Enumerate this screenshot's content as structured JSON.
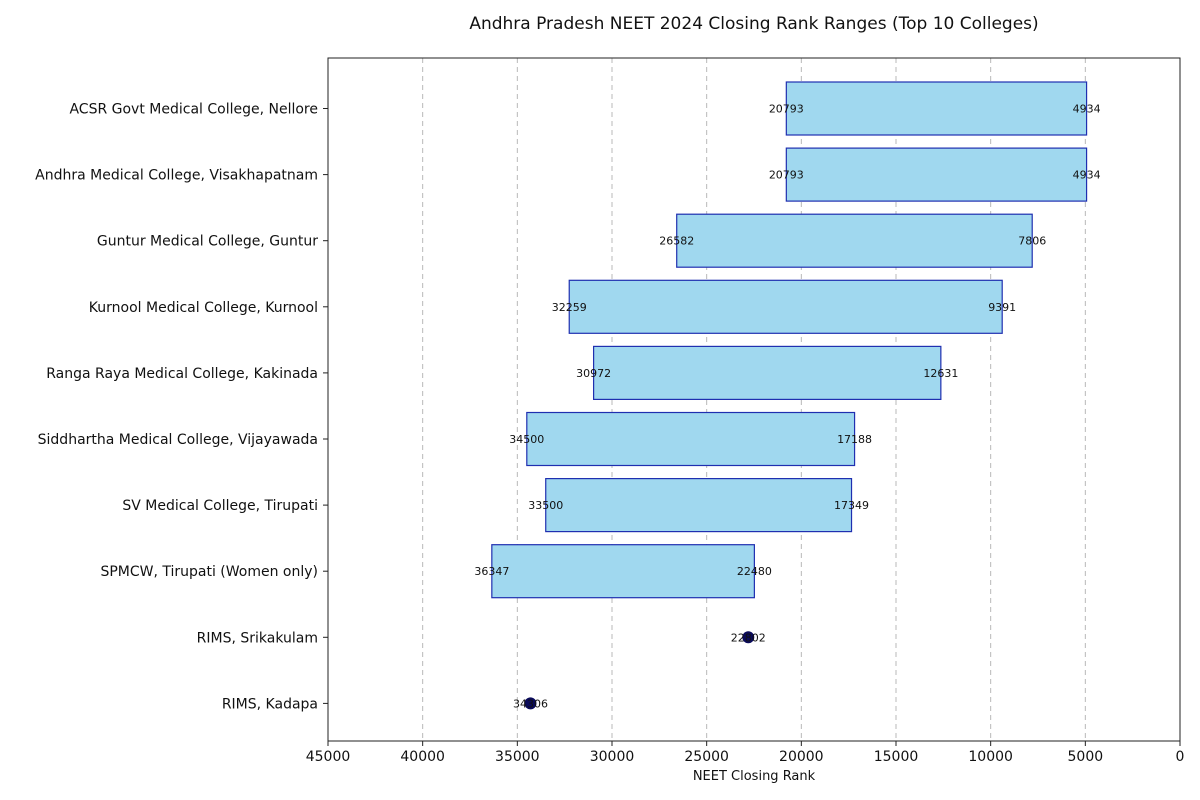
{
  "chart_data": {
    "type": "bar",
    "orientation": "horizontal-range",
    "title": "Andhra Pradesh NEET 2024 Closing Rank Ranges (Top 10 Colleges)",
    "xlabel": "NEET Closing Rank",
    "ylabel": "",
    "xlim": [
      45000,
      0
    ],
    "x_inverted": true,
    "xticks": [
      "45000",
      "40000",
      "35000",
      "30000",
      "25000",
      "20000",
      "15000",
      "10000",
      "5000",
      "0"
    ],
    "xtick_values": [
      45000,
      40000,
      35000,
      30000,
      25000,
      20000,
      15000,
      10000,
      5000,
      0
    ],
    "grid": "vertical dashed",
    "colors": {
      "bar_fill": "#a0d8ef",
      "bar_edge": "#1f2fb0",
      "point": "#0a0a5a"
    },
    "categories": [
      "ACSR Govt Medical College, Nellore",
      "Andhra Medical College, Visakhapatnam",
      "Guntur Medical College, Guntur",
      "Kurnool Medical College, Kurnool",
      "Ranga Raya Medical College, Kakinada",
      "Siddhartha Medical College, Vijayawada",
      "SV Medical College, Tirupati",
      "SPMCW, Tirupati (Women only)",
      "RIMS, Srikakulam",
      "RIMS, Kadapa"
    ],
    "ranges": [
      {
        "low": 4934,
        "high": 20793,
        "low_label": "4934",
        "high_label": "20793"
      },
      {
        "low": 4934,
        "high": 20793,
        "low_label": "4934",
        "high_label": "20793"
      },
      {
        "low": 7806,
        "high": 26582,
        "low_label": "7806",
        "high_label": "26582"
      },
      {
        "low": 9391,
        "high": 32259,
        "low_label": "9391",
        "high_label": "32259"
      },
      {
        "low": 12631,
        "high": 30972,
        "low_label": "12631",
        "high_label": "30972"
      },
      {
        "low": 17188,
        "high": 34500,
        "low_label": "17188",
        "high_label": "34500"
      },
      {
        "low": 17349,
        "high": 33500,
        "low_label": "17349",
        "high_label": "33500"
      },
      {
        "low": 22480,
        "high": 36347,
        "low_label": "22480",
        "high_label": "36347"
      },
      {
        "low": 22802,
        "high": 22802,
        "low_label": "22802",
        "high_label": "22802"
      },
      {
        "low": 34306,
        "high": 34306,
        "low_label": "34306",
        "high_label": "34306"
      }
    ]
  }
}
